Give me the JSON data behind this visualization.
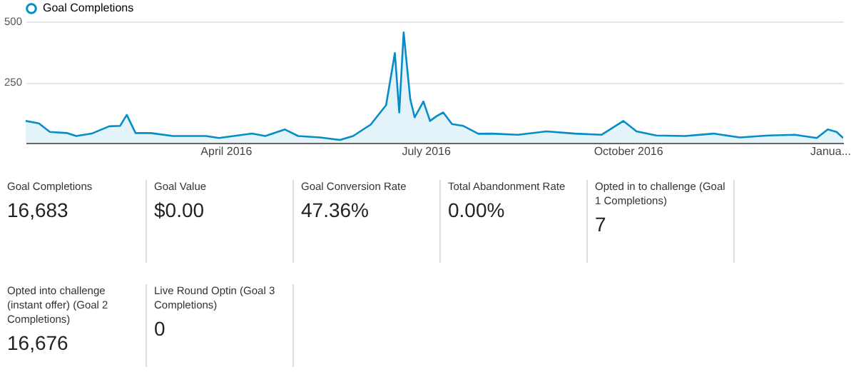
{
  "chart_data": [
    {
      "type": "area",
      "legend": "top left",
      "grid": "y",
      "marker": "none",
      "line_style": "solid",
      "x": [
        "2016-01-01",
        "2016-01-07",
        "2016-01-12",
        "2016-01-20",
        "2016-01-24",
        "2016-01-31",
        "2016-02-08",
        "2016-02-13",
        "2016-02-16",
        "2016-02-20",
        "2016-02-27",
        "2016-03-08",
        "2016-03-23",
        "2016-03-29",
        "2016-04-13",
        "2016-04-19",
        "2016-04-28",
        "2016-05-04",
        "2016-05-14",
        "2016-05-23",
        "2016-05-29",
        "2016-06-06",
        "2016-06-13",
        "2016-06-17",
        "2016-06-19",
        "2016-06-21",
        "2016-06-24",
        "2016-06-26",
        "2016-06-30",
        "2016-07-03",
        "2016-07-06",
        "2016-07-09",
        "2016-07-13",
        "2016-07-18",
        "2016-07-25",
        "2016-07-31",
        "2016-08-12",
        "2016-08-25",
        "2016-09-07",
        "2016-09-19",
        "2016-09-29",
        "2016-10-05",
        "2016-10-14",
        "2016-10-27",
        "2016-11-09",
        "2016-11-21",
        "2016-12-04",
        "2016-12-16",
        "2016-12-26",
        "2016-12-31",
        "2017-01-04",
        "2017-01-07"
      ],
      "series": [
        {
          "name": "Goal Completions",
          "color": "#058dc7",
          "values": [
            90,
            80,
            45,
            40,
            28,
            38,
            68,
            70,
            115,
            40,
            40,
            28,
            28,
            20,
            38,
            28,
            55,
            28,
            22,
            12,
            28,
            75,
            155,
            370,
            125,
            455,
            180,
            105,
            170,
            90,
            110,
            125,
            77,
            70,
            37,
            38,
            33,
            47,
            38,
            33,
            90,
            47,
            30,
            28,
            38,
            22,
            30,
            33,
            20,
            55,
            45,
            20
          ]
        }
      ],
      "xlim": [
        "2016-01-01",
        "2017-01-07"
      ],
      "xticks": [
        {
          "value": "2016-04-01",
          "label": "April 2016"
        },
        {
          "value": "2016-07-01",
          "label": "July 2016"
        },
        {
          "value": "2016-10-01",
          "label": "October 2016"
        },
        {
          "value": "2017-01-01",
          "label": "Janua..."
        }
      ],
      "ylim": [
        0,
        500
      ],
      "yticks": [
        250,
        500
      ]
    },
    {
      "type": "other",
      "annotations": [
        "Goal Completions",
        "16,683",
        "Goal Value",
        "$0.00",
        "Goal Conversion Rate",
        "47.36%",
        "Total Abandonment Rate",
        "0.00%",
        "Opted in to challenge (Goal 1 Completions)",
        "7",
        "Opted into challenge (instant offer) (Goal 2 Completions)",
        "16,676",
        "Live Round Optin (Goal 3 Completions)",
        "0"
      ]
    }
  ]
}
